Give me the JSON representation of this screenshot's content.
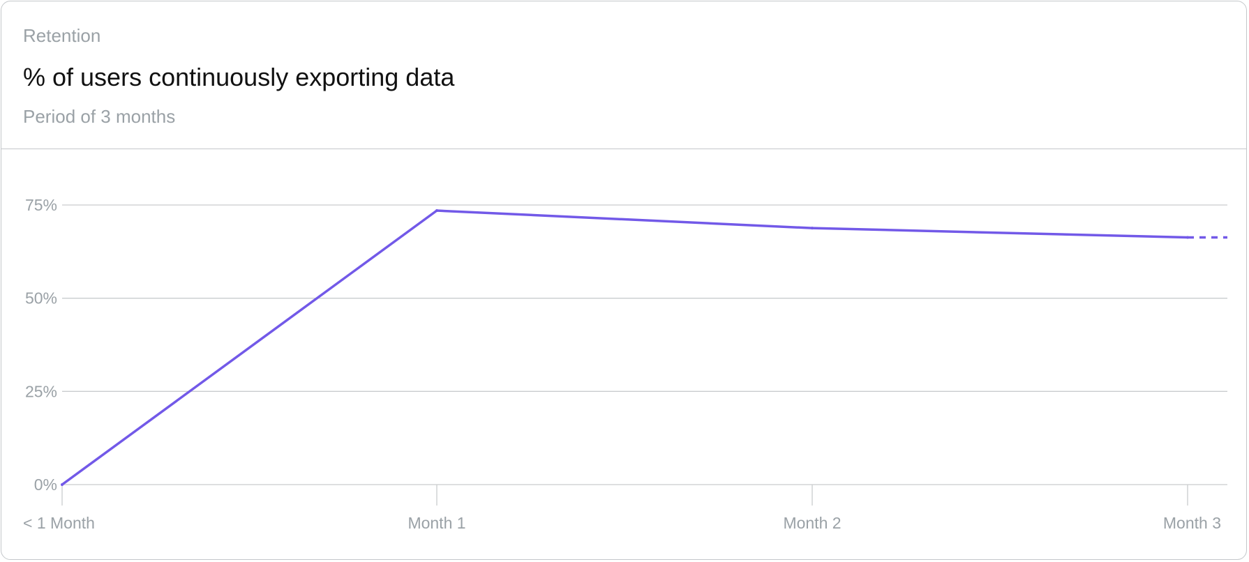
{
  "header": {
    "eyebrow": "Retention",
    "title": "% of users continuously exporting data",
    "subtitle": "Period of 3 months"
  },
  "chart_data": {
    "type": "line",
    "categories": [
      "< 1 Month",
      "Month 1",
      "Month 2",
      "Month 3"
    ],
    "values": [
      0,
      73.5,
      68.8,
      66.3
    ],
    "projection": "dashed continuation after Month 3",
    "ylim": [
      0,
      75
    ],
    "yticks": [
      0,
      25,
      50,
      75
    ],
    "ytick_labels": [
      "0%",
      "25%",
      "50%",
      "75%"
    ],
    "grid": true,
    "line_color": "#7259e8",
    "grid_color": "#c9ccce",
    "label_color": "#9aa1a6"
  }
}
